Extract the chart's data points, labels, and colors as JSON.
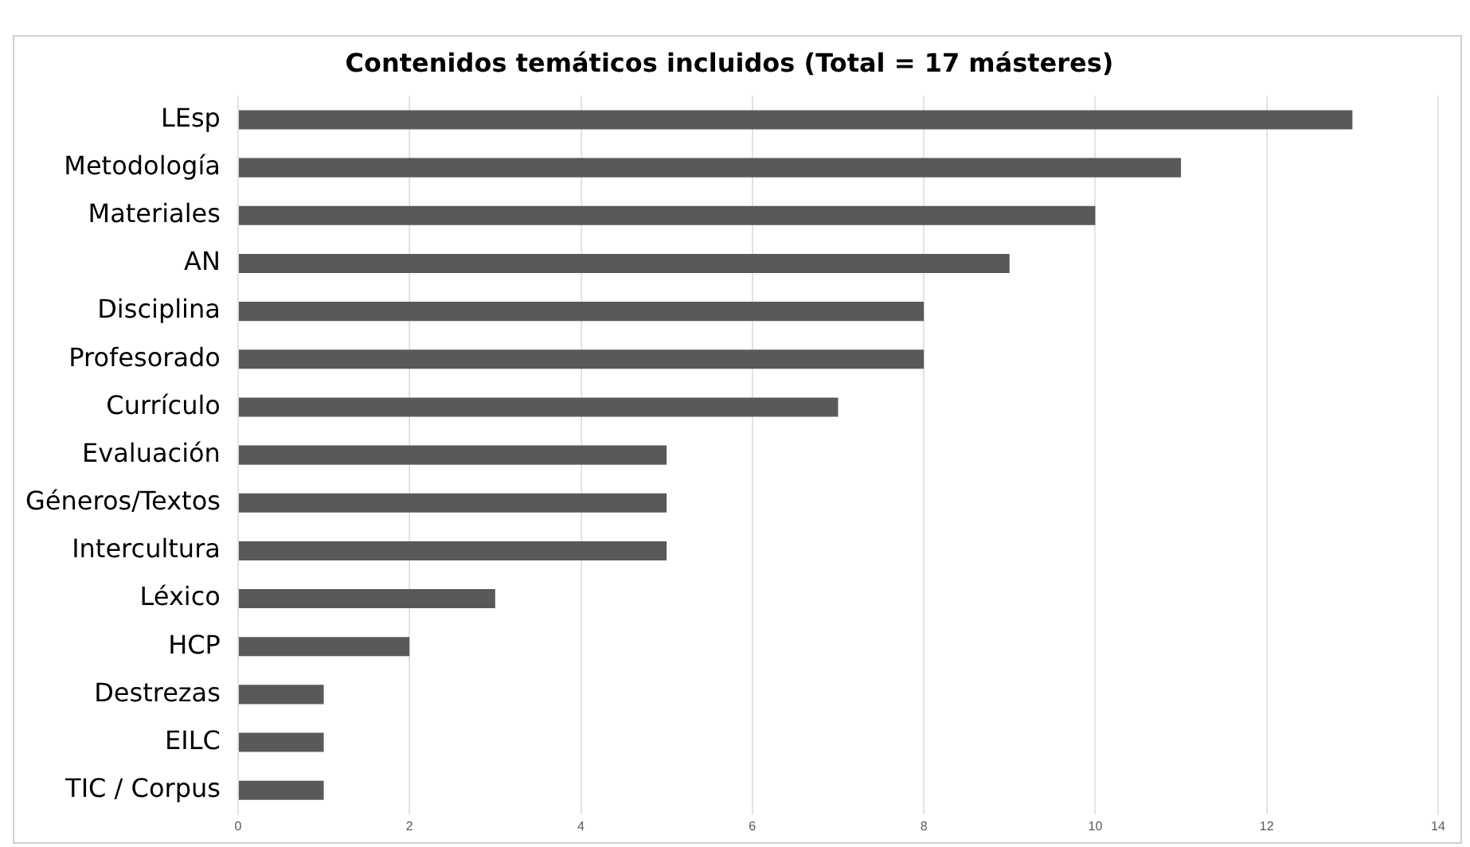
{
  "chart_data": {
    "type": "bar",
    "orientation": "horizontal",
    "title": "Contenidos temáticos incluidos (Total = 17 másteres)",
    "categories": [
      "LEsp",
      "Metodología",
      "Materiales",
      "AN",
      "Disciplina",
      "Profesorado",
      "Currículo",
      "Evaluación",
      "Géneros/Textos",
      "Intercultura",
      "Léxico",
      "HCP",
      "Destrezas",
      "EILC",
      "TIC / Corpus"
    ],
    "values": [
      13,
      11,
      10,
      9,
      8,
      8,
      7,
      5,
      5,
      5,
      3,
      2,
      1,
      1,
      1
    ],
    "color": "#595959",
    "xlim": [
      0,
      14
    ],
    "xticks": [
      0,
      2,
      4,
      6,
      8,
      10,
      12,
      14
    ],
    "grid": "x",
    "legend": false
  }
}
